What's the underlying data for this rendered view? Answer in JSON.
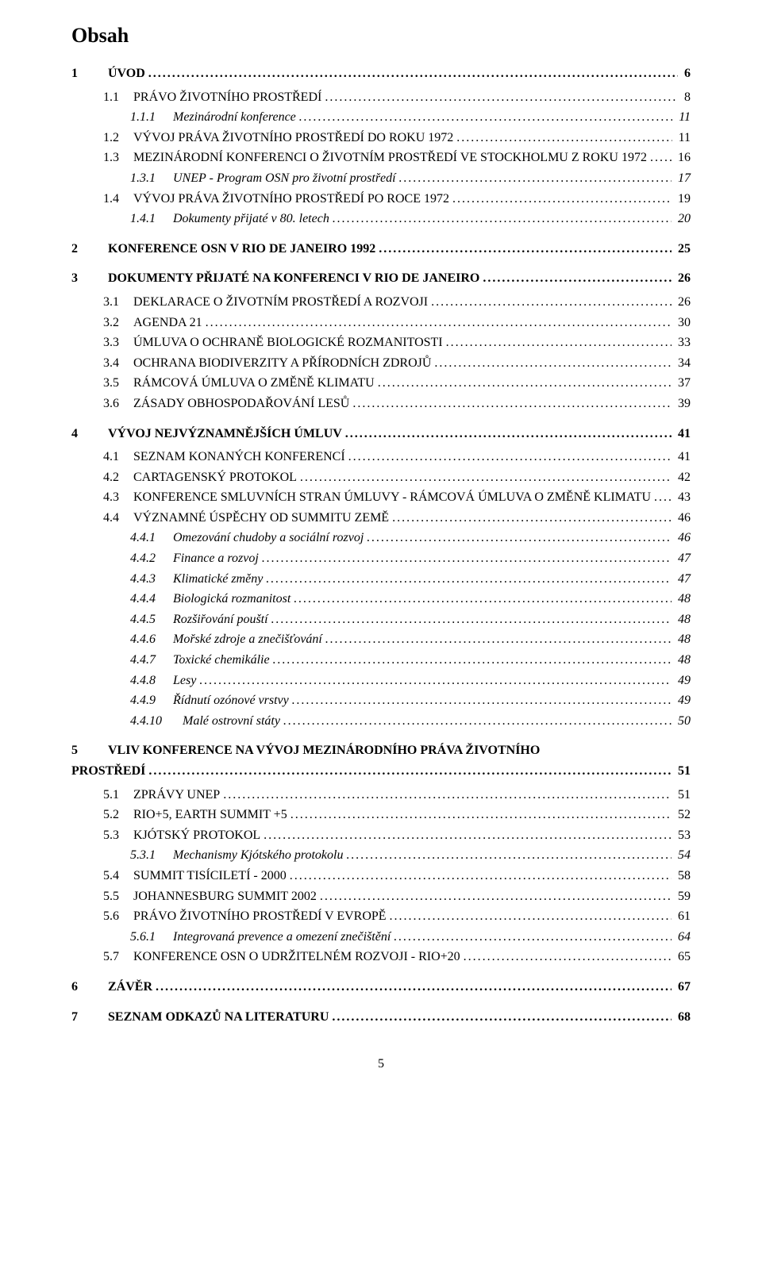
{
  "title": "Obsah",
  "footer_page": "5",
  "entries": [
    {
      "level": 1,
      "num": "1",
      "label": "ÚVOD",
      "page": "6"
    },
    {
      "level": 2,
      "num": "1.1",
      "label": "PRÁVO ŽIVOTNÍHO PROSTŘEDÍ",
      "page": "8",
      "smallcaps": true
    },
    {
      "level": 3,
      "num": "1.1.1",
      "label": "Mezinárodní konference",
      "page": "11"
    },
    {
      "level": 2,
      "num": "1.2",
      "label": "VÝVOJ PRÁVA ŽIVOTNÍHO PROSTŘEDÍ DO ROKU 1972",
      "page": "11",
      "smallcaps": true
    },
    {
      "level": 2,
      "num": "1.3",
      "label": "MEZINÁRODNÍ KONFERENCI O ŽIVOTNÍM PROSTŘEDÍ VE STOCKHOLMU Z ROKU 1972",
      "page": "16",
      "smallcaps": true
    },
    {
      "level": 3,
      "num": "1.3.1",
      "label": "UNEP - Program OSN pro životní prostředí",
      "page": "17"
    },
    {
      "level": 2,
      "num": "1.4",
      "label": "VÝVOJ PRÁVA ŽIVOTNÍHO PROSTŘEDÍ PO ROCE 1972",
      "page": "19",
      "smallcaps": true
    },
    {
      "level": 3,
      "num": "1.4.1",
      "label": "Dokumenty přijaté v 80. letech",
      "page": "20"
    },
    {
      "level": 1,
      "num": "2",
      "label": "KONFERENCE OSN V RIO DE JANEIRO 1992",
      "page": "25"
    },
    {
      "level": 1,
      "num": "3",
      "label": "DOKUMENTY PŘIJATÉ NA KONFERENCI V RIO DE JANEIRO",
      "page": "26"
    },
    {
      "level": 2,
      "num": "3.1",
      "label": "DEKLARACE O ŽIVOTNÍM PROSTŘEDÍ A ROZVOJI",
      "page": "26",
      "smallcaps": true
    },
    {
      "level": 2,
      "num": "3.2",
      "label": "AGENDA 21",
      "page": "30",
      "smallcaps": true
    },
    {
      "level": 2,
      "num": "3.3",
      "label": "ÚMLUVA O OCHRANĚ BIOLOGICKÉ ROZMANITOSTI",
      "page": "33",
      "smallcaps": true
    },
    {
      "level": 2,
      "num": "3.4",
      "label": "OCHRANA BIODIVERZITY A PŘÍRODNÍCH ZDROJŮ",
      "page": "34",
      "smallcaps": true
    },
    {
      "level": 2,
      "num": "3.5",
      "label": "RÁMCOVÁ ÚMLUVA O ZMĚNĚ KLIMATU",
      "page": "37",
      "smallcaps": true
    },
    {
      "level": 2,
      "num": "3.6",
      "label": "ZÁSADY OBHOSPODAŘOVÁNÍ LESŮ",
      "page": "39",
      "smallcaps": true
    },
    {
      "level": 1,
      "num": "4",
      "label": "VÝVOJ NEJVÝZNAMNĚJŠÍCH ÚMLUV",
      "page": "41"
    },
    {
      "level": 2,
      "num": "4.1",
      "label": "SEZNAM KONANÝCH KONFERENCÍ",
      "page": "41",
      "smallcaps": true
    },
    {
      "level": 2,
      "num": "4.2",
      "label": "CARTAGENSKÝ PROTOKOL",
      "page": "42",
      "smallcaps": true
    },
    {
      "level": 2,
      "num": "4.3",
      "label": "KONFERENCE SMLUVNÍCH STRAN ÚMLUVY - RÁMCOVÁ ÚMLUVA O ZMĚNĚ KLIMATU",
      "page": "43",
      "smallcaps": true
    },
    {
      "level": 2,
      "num": "4.4",
      "label": "VÝZNAMNÉ ÚSPĚCHY OD SUMMITU ZEMĚ",
      "page": "46",
      "smallcaps": true
    },
    {
      "level": 3,
      "num": "4.4.1",
      "label": "Omezování chudoby a sociální rozvoj",
      "page": "46"
    },
    {
      "level": 3,
      "num": "4.4.2",
      "label": "Finance a rozvoj",
      "page": "47"
    },
    {
      "level": 3,
      "num": "4.4.3",
      "label": "Klimatické změny",
      "page": "47"
    },
    {
      "level": 3,
      "num": "4.4.4",
      "label": "Biologická rozmanitost",
      "page": "48"
    },
    {
      "level": 3,
      "num": "4.4.5",
      "label": "Rozšiřování pouští",
      "page": "48"
    },
    {
      "level": 3,
      "num": "4.4.6",
      "label": "Mořské zdroje a znečišťování",
      "page": "48"
    },
    {
      "level": 3,
      "num": "4.4.7",
      "label": "Toxické chemikálie",
      "page": "48"
    },
    {
      "level": 3,
      "num": "4.4.8",
      "label": "Lesy",
      "page": "49"
    },
    {
      "level": 3,
      "num": "4.4.9",
      "label": "Řídnutí ozónové vrstvy",
      "page": "49"
    },
    {
      "level": 3,
      "num": "4.4.10",
      "label": "Malé ostrovní státy",
      "page": "50",
      "wide": true
    },
    {
      "level": 1,
      "num": "5",
      "label_line1": "VLIV KONFERENCE NA VÝVOJ MEZINÁRODNÍHO PRÁVA ŽIVOTNÍHO",
      "label_line2": "PROSTŘEDÍ",
      "page": "51",
      "wrapped": true
    },
    {
      "level": 2,
      "num": "5.1",
      "label": "ZPRÁVY UNEP",
      "page": "51",
      "smallcaps": true
    },
    {
      "level": 2,
      "num": "5.2",
      "label": "RIO+5, EARTH SUMMIT +5",
      "page": "52",
      "smallcaps": true
    },
    {
      "level": 2,
      "num": "5.3",
      "label": "KJÓTSKÝ PROTOKOL",
      "page": "53",
      "smallcaps": true
    },
    {
      "level": 3,
      "num": "5.3.1",
      "label": "Mechanismy Kjótského protokolu",
      "page": "54"
    },
    {
      "level": 2,
      "num": "5.4",
      "label": "SUMMIT TISÍCILETÍ - 2000",
      "page": "58",
      "smallcaps": true
    },
    {
      "level": 2,
      "num": "5.5",
      "label": "JOHANNESBURG SUMMIT 2002",
      "page": "59",
      "smallcaps": true
    },
    {
      "level": 2,
      "num": "5.6",
      "label": "PRÁVO ŽIVOTNÍHO PROSTŘEDÍ V EVROPĚ",
      "page": "61",
      "smallcaps": true
    },
    {
      "level": 3,
      "num": "5.6.1",
      "label": "Integrovaná prevence a omezení znečištění",
      "page": "64"
    },
    {
      "level": 2,
      "num": "5.7",
      "label": "KONFERENCE OSN O UDRŽITELNÉM ROZVOJI - RIO+20",
      "page": "65",
      "smallcaps": true
    },
    {
      "level": 1,
      "num": "6",
      "label": "ZÁVĚR",
      "page": "67"
    },
    {
      "level": 1,
      "num": "7",
      "label": "SEZNAM ODKAZŮ NA LITERATURU",
      "page": "68"
    }
  ]
}
